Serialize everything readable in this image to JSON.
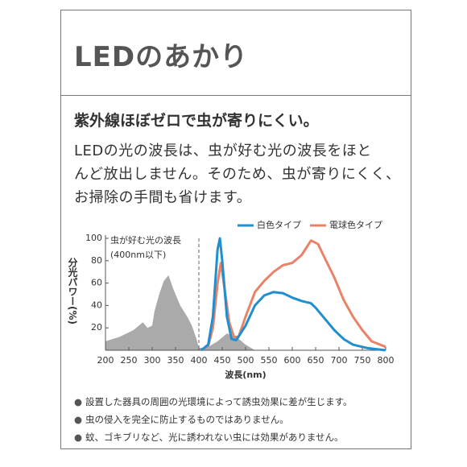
{
  "header": {
    "title": "LEDのあかり"
  },
  "headline": "紫外線ほぼゼロで虫が寄りにくい。",
  "body": [
    "LEDの光の波長は、虫が好む光の波長をほと",
    "んど放出しません。そのため、虫が寄りにくく、",
    "お掃除の手間も省けます。"
  ],
  "chart_data": {
    "type": "line",
    "x_label": "波長(nm)",
    "y_label": "分光パワー(%)",
    "xlim": [
      200,
      800
    ],
    "ylim": [
      0,
      100
    ],
    "xticks": [
      200,
      250,
      300,
      350,
      400,
      450,
      500,
      550,
      600,
      650,
      700,
      750,
      800
    ],
    "yticks": [
      20,
      40,
      60,
      80,
      100
    ],
    "divider_x": 400,
    "annotation": [
      "虫が好む光の波長",
      "(400nm以下)"
    ],
    "series": [
      {
        "name": "白色タイプ",
        "color": "#1f8fd0",
        "x": [
          405,
          420,
          430,
          440,
          445,
          450,
          460,
          470,
          480,
          500,
          520,
          540,
          560,
          580,
          600,
          620,
          640,
          650,
          670,
          690,
          710,
          730,
          760,
          800
        ],
        "values": [
          0,
          5,
          30,
          90,
          100,
          80,
          30,
          10,
          9,
          22,
          40,
          49,
          52,
          51,
          47,
          44,
          42,
          38,
          28,
          18,
          10,
          5,
          2,
          0
        ]
      },
      {
        "name": "電球色タイプ",
        "color": "#e8836a",
        "x": [
          405,
          420,
          430,
          440,
          447,
          455,
          465,
          475,
          485,
          500,
          520,
          540,
          560,
          580,
          600,
          620,
          640,
          655,
          670,
          690,
          710,
          730,
          750,
          770,
          800
        ],
        "values": [
          0,
          4,
          20,
          60,
          78,
          55,
          25,
          12,
          12,
          30,
          52,
          62,
          70,
          76,
          78,
          85,
          98,
          95,
          82,
          65,
          45,
          30,
          18,
          8,
          3
        ]
      }
    ],
    "background_area": {
      "color": "#aaaaaa",
      "x": [
        200,
        230,
        260,
        280,
        290,
        300,
        305,
        315,
        325,
        335,
        345,
        360,
        375,
        385,
        395,
        400,
        420,
        440,
        460,
        480,
        500,
        520
      ],
      "values": [
        8,
        12,
        18,
        25,
        20,
        22,
        35,
        50,
        62,
        67,
        55,
        40,
        30,
        22,
        10,
        2,
        3,
        8,
        15,
        12,
        5,
        0
      ]
    }
  },
  "notes": [
    "設置した器具の周囲の光環境によって誘虫効果に差が生じます。",
    "虫の侵入を完全に防止するものではありません。",
    "蚊、ゴキブリなど、光に誘われない虫には効果がありません。"
  ]
}
